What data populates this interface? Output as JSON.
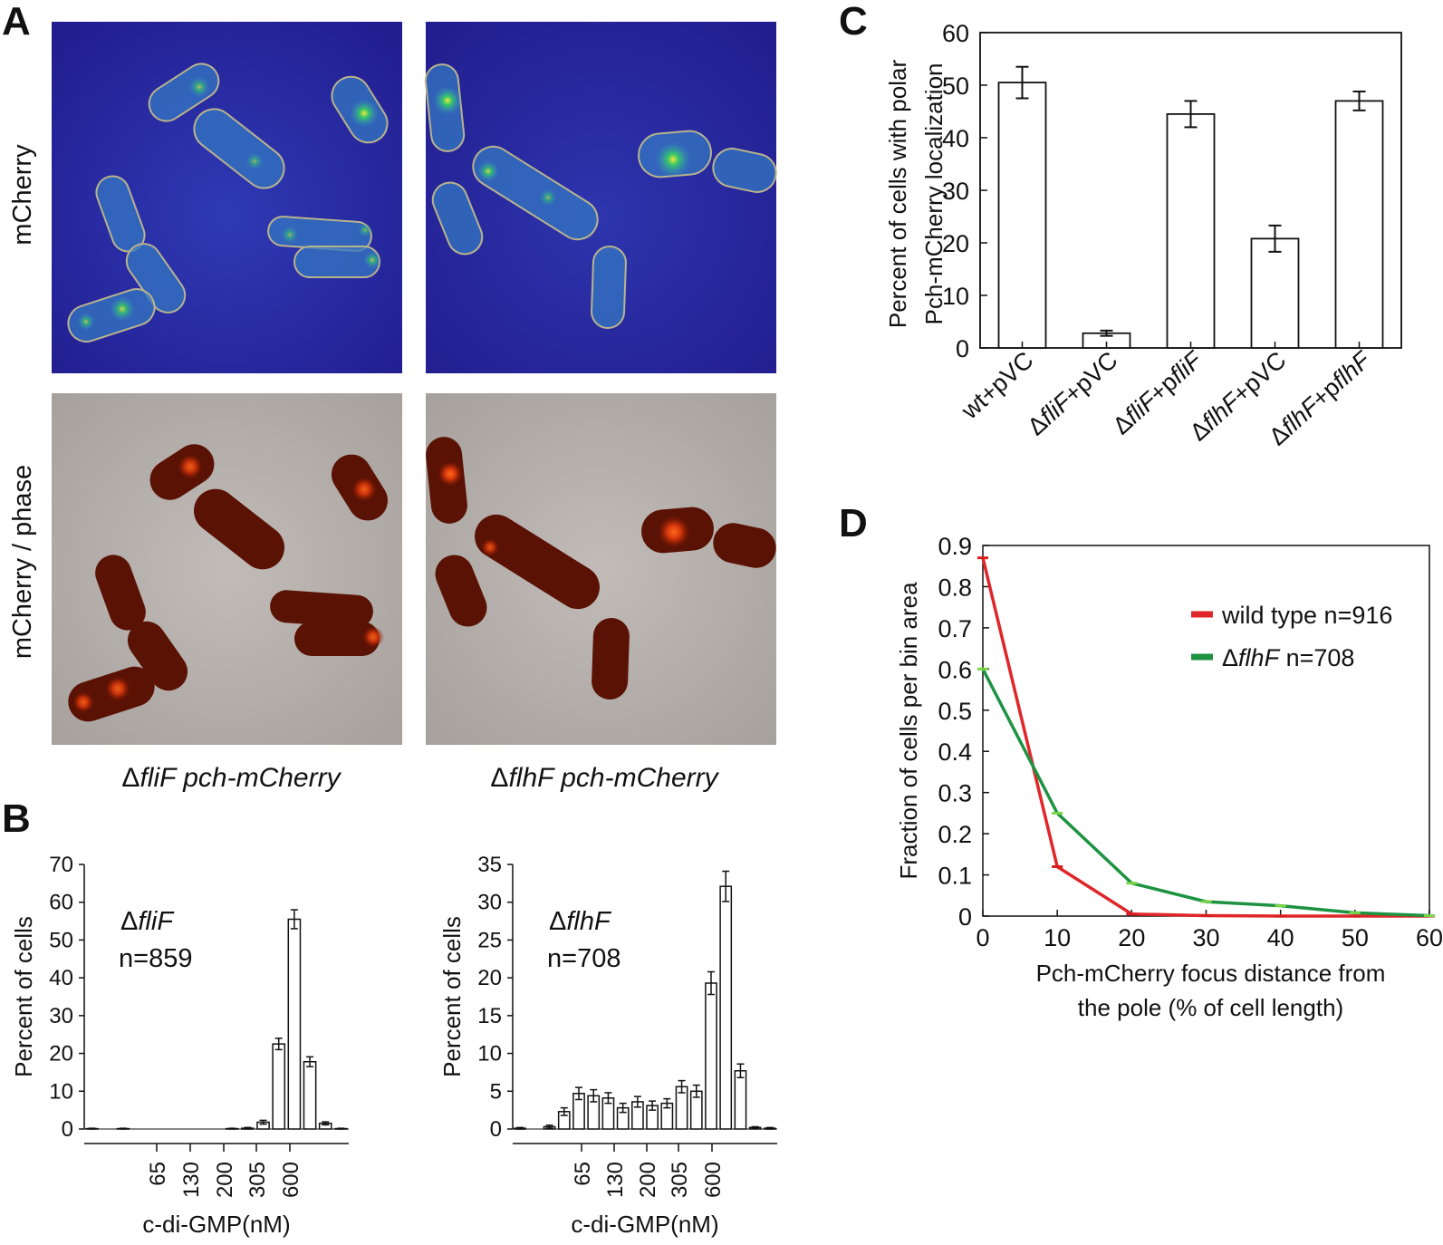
{
  "panels": {
    "A": {
      "label": "A",
      "row_labels": [
        "mCherry",
        "mCherry / phase"
      ],
      "captions": [
        {
          "prefix": "Δ",
          "gene": "fliF",
          "rest": " pch-mCherry"
        },
        {
          "prefix": "Δ",
          "gene": "flhF",
          "rest": " pch-mCherry"
        }
      ],
      "colors": {
        "fluor_bg": "#2c2aa8",
        "fluor_cell": "#3a86c9",
        "focus": "#31c76a",
        "phase_bg": "#b7b1ad",
        "cell_dark": "#5a1204",
        "cell_red": "#c22b07"
      }
    },
    "B": {
      "label": "B",
      "xlabel": "c-di-GMP(nM)",
      "ylabel": "Percent of cells",
      "tick_labels": [
        "65",
        "130",
        "200",
        "305",
        "600"
      ]
    },
    "C": {
      "label": "C"
    },
    "D": {
      "label": "D"
    }
  },
  "chart_data": [
    {
      "id": "B-left",
      "type": "bar",
      "annotation": {
        "prefix": "Δ",
        "gene": "fliF",
        "n": "n=859"
      },
      "ylabel": "Percent of cells",
      "xlabel": "c-di-GMP(nM)",
      "ylim": [
        0,
        70
      ],
      "yticks": [
        0,
        10,
        20,
        30,
        40,
        50,
        60,
        70
      ],
      "xticks": [
        "65",
        "130",
        "200",
        "305",
        "600"
      ],
      "values": [
        0.1,
        0,
        0.1,
        0,
        0,
        0,
        0,
        0,
        0,
        0.1,
        0.2,
        1.8,
        22.5,
        55.5,
        17.8,
        1.5,
        0.1
      ],
      "errors": [
        0.1,
        0,
        0.1,
        0,
        0,
        0,
        0,
        0,
        0,
        0.1,
        0.2,
        0.5,
        1.5,
        2.5,
        1.3,
        0.4,
        0.1
      ]
    },
    {
      "id": "B-right",
      "type": "bar",
      "annotation": {
        "prefix": "Δ",
        "gene": "flhF",
        "n": "n=708"
      },
      "ylabel": "Percent of cells",
      "xlabel": "c-di-GMP(nM)",
      "ylim": [
        0,
        35
      ],
      "yticks": [
        0,
        5,
        10,
        15,
        20,
        25,
        30,
        35
      ],
      "xticks": [
        "65",
        "130",
        "200",
        "305",
        "600"
      ],
      "values": [
        0.1,
        0,
        0.3,
        2.3,
        4.7,
        4.4,
        4.1,
        2.8,
        3.6,
        3.1,
        3.4,
        5.6,
        5.0,
        19.3,
        32.1,
        7.7,
        0.2,
        0.1
      ],
      "errors": [
        0.1,
        0,
        0.2,
        0.5,
        0.8,
        0.8,
        0.7,
        0.6,
        0.7,
        0.6,
        0.6,
        0.8,
        0.8,
        1.5,
        2.0,
        0.9,
        0.1,
        0.1
      ]
    },
    {
      "id": "C",
      "type": "bar",
      "ylabel_lines": [
        "Percent of cells with polar",
        "Pch-mCherry  localization"
      ],
      "ylim": [
        0,
        60
      ],
      "yticks": [
        0,
        10,
        20,
        30,
        40,
        50,
        60
      ],
      "categories": [
        {
          "pre": "wt+pVC",
          "gene": "",
          "post": ""
        },
        {
          "pre": "Δ",
          "gene": "fliF",
          "post": "+pVC"
        },
        {
          "pre": "Δ",
          "gene": "fliF",
          "post": "+p",
          "gene2": "fliF"
        },
        {
          "pre": "Δ",
          "gene": "flhF",
          "post": "+pVC"
        },
        {
          "pre": "Δ",
          "gene": "flhF",
          "post": "+p",
          "gene2": "flhF"
        }
      ],
      "values": [
        50.5,
        2.8,
        44.5,
        20.8,
        47.0
      ],
      "errors": [
        3.0,
        0.5,
        2.5,
        2.5,
        1.8
      ]
    },
    {
      "id": "D",
      "type": "line",
      "xlabel_lines": [
        "Pch-mCherry focus distance from",
        "the pole (% of cell length)"
      ],
      "ylabel": "Fraction of cells per bin area",
      "xlim": [
        0,
        60
      ],
      "ylim": [
        0,
        0.9
      ],
      "xticks": [
        0,
        10,
        20,
        30,
        40,
        50,
        60
      ],
      "yticks": [
        "0",
        "0.1",
        "0.2",
        "0.3",
        "0.4",
        "0.5",
        "0.6",
        "0.7",
        "0.8",
        "0.9"
      ],
      "series": [
        {
          "prefix": "",
          "gene": "",
          "name": "wild type n=916",
          "color": "#e0262a",
          "x": [
            0,
            10,
            20,
            30,
            40,
            50,
            60
          ],
          "y": [
            0.87,
            0.12,
            0.005,
            0.001,
            0,
            0,
            0
          ]
        },
        {
          "prefix": "Δ",
          "gene": "flhF",
          "name": " n=708",
          "color": "#1d9342",
          "x": [
            0,
            10,
            20,
            30,
            40,
            50,
            60
          ],
          "y": [
            0.6,
            0.25,
            0.08,
            0.035,
            0.025,
            0.008,
            0.001
          ]
        }
      ],
      "legend": "top-right"
    }
  ]
}
